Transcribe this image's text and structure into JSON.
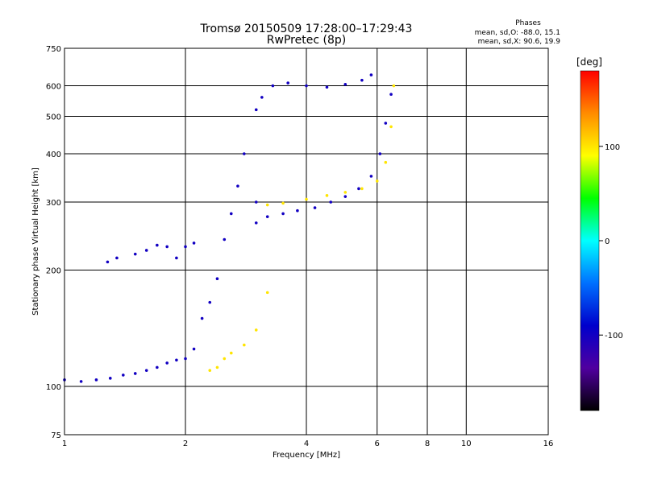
{
  "chart_data": {
    "type": "scatter",
    "title": "Tromsø 20150509 17:28:00–17:29:43",
    "subtitle": "RwPretec (8p)",
    "xlabel": "Frequency [MHz]",
    "ylabel": "Stationary phase Virtual Height [km]",
    "x_scale": "log",
    "y_scale": "log",
    "xlim": [
      1,
      16
    ],
    "ylim": [
      75,
      750
    ],
    "x_ticks": [
      1,
      2,
      4,
      6,
      8,
      10,
      16
    ],
    "y_ticks": [
      75,
      100,
      200,
      300,
      400,
      500,
      600,
      750
    ],
    "grid": true,
    "stats": {
      "heading": "Phases",
      "line_o": "mean, sd,O: -88.0, 15.1",
      "line_x": "mean, sd,X:  90.6, 19.9"
    },
    "colorbar": {
      "label": "[deg]",
      "range": [
        -180,
        180
      ],
      "ticks": [
        100,
        0,
        -100
      ],
      "tick_labels": [
        "100",
        "0",
        "-100"
      ],
      "colors": [
        "#ff0000",
        "#ff8c00",
        "#ffff00",
        "#00ff00",
        "#00ffff",
        "#0070ff",
        "#0000cc",
        "#5000a0",
        "#000000"
      ]
    },
    "trace_phase": {
      "o_mode": -100,
      "x_mode": 100
    },
    "traces": [
      {
        "name": "",
        "mode": "O",
        "x": [
          1.0,
          1.1,
          1.2,
          1.3,
          1.4,
          1.5,
          1.6,
          1.7,
          1.8,
          1.9,
          2.0,
          2.1
        ],
        "y": [
          104,
          103,
          104,
          105,
          107,
          108,
          110,
          112,
          115,
          117,
          118,
          125
        ]
      },
      {
        "name": "",
        "mode": "O",
        "x": [
          1.28,
          1.35,
          1.5,
          1.6,
          1.7,
          1.8,
          1.9,
          2.0,
          2.1
        ],
        "y": [
          210,
          215,
          220,
          225,
          232,
          230,
          215,
          230,
          235
        ]
      },
      {
        "name": "",
        "mode": "O",
        "x": [
          2.2,
          2.3,
          2.4,
          2.5,
          2.6,
          2.7,
          2.8,
          3.0
        ],
        "y": [
          150,
          165,
          190,
          240,
          280,
          330,
          400,
          520
        ]
      },
      {
        "name": "",
        "mode": "O",
        "x": [
          3.0,
          3.1,
          3.3,
          3.6,
          4.0,
          4.5,
          5.0,
          5.5,
          5.8
        ],
        "y": [
          300,
          560,
          600,
          610,
          600,
          595,
          605,
          620,
          640
        ]
      },
      {
        "name": "",
        "mode": "O",
        "x": [
          3.0,
          3.2,
          3.5,
          3.8,
          4.2,
          4.6,
          5.0,
          5.4,
          5.8,
          6.1,
          6.3,
          6.5
        ],
        "y": [
          265,
          275,
          280,
          285,
          290,
          300,
          310,
          325,
          350,
          400,
          480,
          570
        ]
      },
      {
        "name": "",
        "mode": "X",
        "x": [
          2.3,
          2.4,
          2.5,
          2.6,
          2.8,
          3.0,
          3.2
        ],
        "y": [
          110,
          112,
          118,
          122,
          128,
          140,
          175
        ]
      },
      {
        "name": "",
        "mode": "X",
        "x": [
          3.2,
          3.5,
          4.0,
          4.5,
          5.0,
          5.5,
          6.0,
          6.3,
          6.5,
          6.6
        ],
        "y": [
          295,
          298,
          305,
          312,
          318,
          325,
          340,
          380,
          470,
          600
        ]
      }
    ]
  }
}
